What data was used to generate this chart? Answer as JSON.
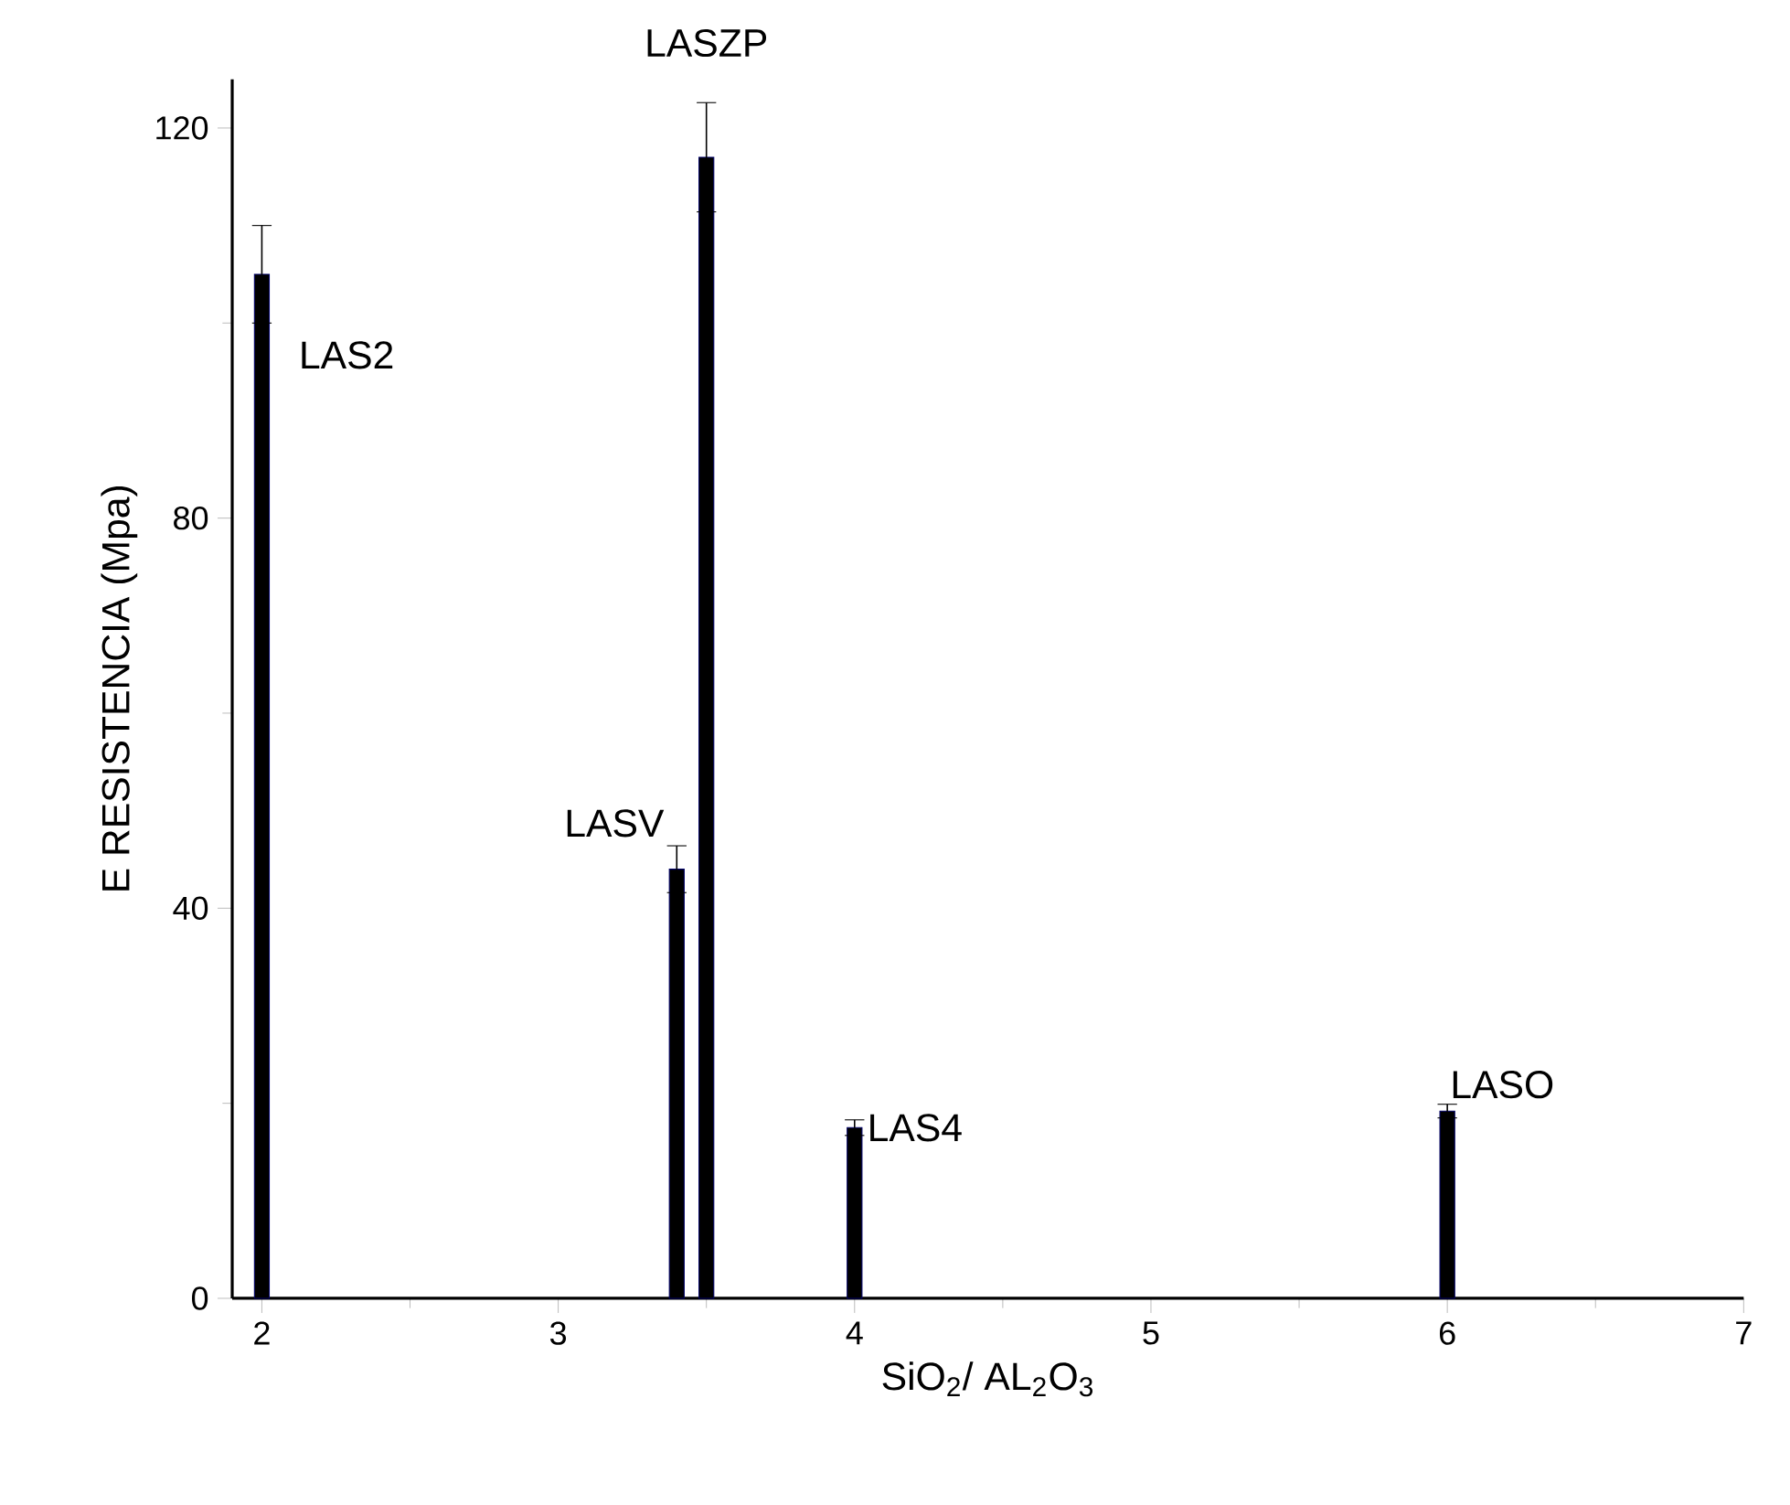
{
  "chart_data": {
    "type": "bar",
    "xlabel": "SiO$_{2}$/ AL$_{2}$O$_{3}$",
    "ylabel": "E  RESISTENCIA (Mpa)",
    "x": [
      2,
      3.4,
      3.5,
      4,
      6
    ],
    "values": [
      105,
      44,
      117,
      17.5,
      19.2
    ],
    "errors": [
      5,
      2.4,
      5.6,
      0.8,
      0.7
    ],
    "color": "#000000",
    "xlim": [
      1.9,
      7
    ],
    "ylim": [
      0,
      125
    ],
    "xticks": [
      2,
      3,
      4,
      5,
      6,
      7
    ],
    "yticks": [
      0,
      40,
      80,
      120
    ],
    "grid": false,
    "annotations": [
      {
        "text": "LAS2",
        "x": 2,
        "y": 105
      },
      {
        "text": "LASV",
        "x": 3.4,
        "y": 44
      },
      {
        "text": "LASZP",
        "x": 3.5,
        "y": 117
      },
      {
        "text": "LAS4",
        "x": 4,
        "y": 17.5
      },
      {
        "text": "LASO",
        "x": 6,
        "y": 19.2
      }
    ]
  }
}
